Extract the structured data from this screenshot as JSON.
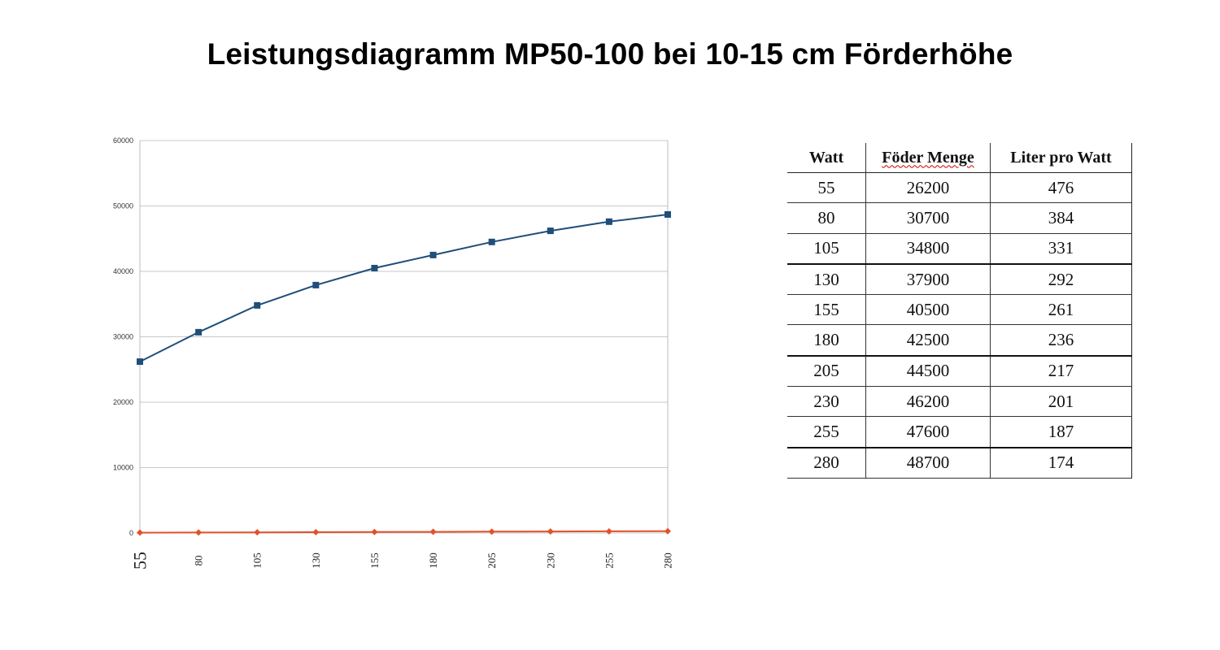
{
  "title": "Leistungsdiagramm MP50-100 bei 10-15 cm Förderhöhe",
  "colors": {
    "series_blue": "#1f4e79",
    "series_red": "#e0522a",
    "grid": "#c8c8c8"
  },
  "chart_data": {
    "type": "line",
    "title": "",
    "xlabel": "",
    "ylabel": "",
    "categories": [
      "55",
      "80",
      "105",
      "130",
      "155",
      "180",
      "205",
      "230",
      "255",
      "280"
    ],
    "ylim": [
      0,
      60000
    ],
    "yticks": [
      "0",
      "10000",
      "20000",
      "30000",
      "40000",
      "50000",
      "60000"
    ],
    "grid": true,
    "legend": "none",
    "series": [
      {
        "values": [
          26200,
          30700,
          34800,
          37900,
          40500,
          42500,
          44500,
          46200,
          47600,
          48700
        ],
        "color": "#1f4e79",
        "marker": "square"
      },
      {
        "values": [
          55,
          80,
          105,
          130,
          155,
          180,
          205,
          230,
          255,
          280
        ],
        "color": "#e0522a",
        "marker": "diamond"
      }
    ]
  },
  "table": {
    "headers": [
      "Watt",
      "Föder Menge",
      "Liter pro Watt"
    ],
    "rows": [
      [
        "55",
        "26200",
        "476"
      ],
      [
        "80",
        "30700",
        "384"
      ],
      [
        "105",
        "34800",
        "331"
      ],
      [
        "130",
        "37900",
        "292"
      ],
      [
        "155",
        "40500",
        "261"
      ],
      [
        "180",
        "42500",
        "236"
      ],
      [
        "205",
        "44500",
        "217"
      ],
      [
        "230",
        "46200",
        "201"
      ],
      [
        "255",
        "47600",
        "187"
      ],
      [
        "280",
        "48700",
        "174"
      ]
    ]
  }
}
